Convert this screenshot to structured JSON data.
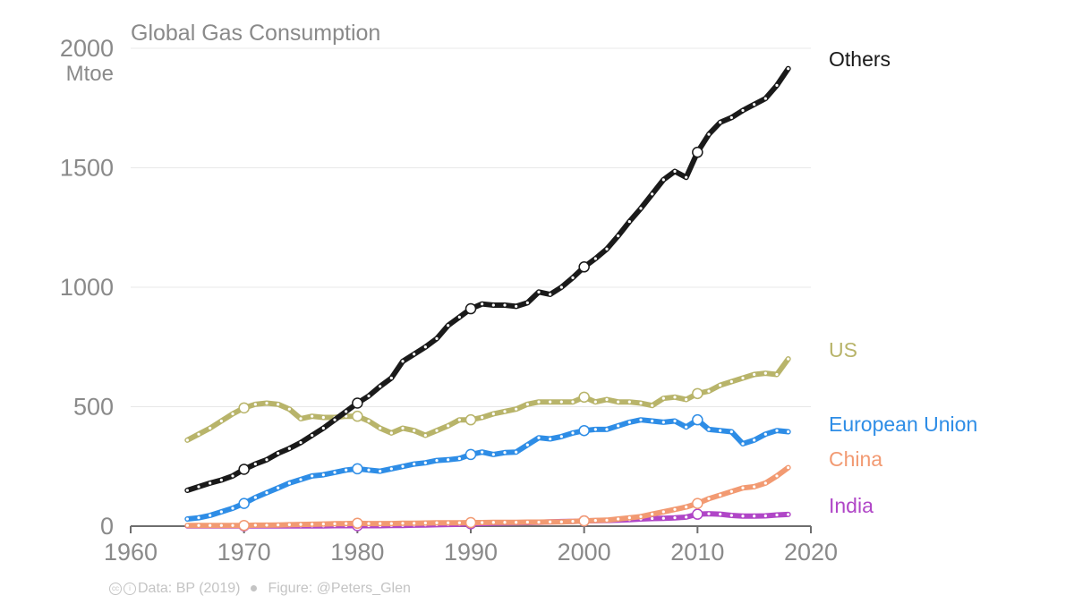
{
  "chart_data": {
    "type": "line",
    "title": "Global Gas Consumption",
    "ylabel": "",
    "unit_label": "Mtoe",
    "xlim": [
      1960,
      2020
    ],
    "ylim": [
      0,
      2000
    ],
    "x_ticks": [
      1960,
      1970,
      1980,
      1990,
      2000,
      2010,
      2020
    ],
    "y_ticks": [
      0,
      500,
      1000,
      1500,
      2000
    ],
    "x": [
      1965,
      1966,
      1967,
      1968,
      1969,
      1970,
      1971,
      1972,
      1973,
      1974,
      1975,
      1976,
      1977,
      1978,
      1979,
      1980,
      1981,
      1982,
      1983,
      1984,
      1985,
      1986,
      1987,
      1988,
      1989,
      1990,
      1991,
      1992,
      1993,
      1994,
      1995,
      1996,
      1997,
      1998,
      1999,
      2000,
      2001,
      2002,
      2003,
      2004,
      2005,
      2006,
      2007,
      2008,
      2009,
      2010,
      2011,
      2012,
      2013,
      2014,
      2015,
      2016,
      2017,
      2018
    ],
    "series": [
      {
        "name": "Others",
        "color": "#1a1a1a",
        "values": [
          150,
          165,
          180,
          193,
          210,
          238,
          260,
          278,
          305,
          325,
          350,
          380,
          410,
          445,
          480,
          515,
          545,
          585,
          620,
          690,
          720,
          750,
          785,
          840,
          875,
          910,
          930,
          925,
          925,
          920,
          935,
          980,
          970,
          1000,
          1040,
          1085,
          1120,
          1160,
          1215,
          1275,
          1330,
          1390,
          1450,
          1485,
          1460,
          1565,
          1640,
          1690,
          1710,
          1740,
          1765,
          1790,
          1845,
          1915
        ]
      },
      {
        "name": "US",
        "color": "#b8b46a",
        "values": [
          360,
          385,
          410,
          440,
          470,
          495,
          510,
          515,
          510,
          490,
          450,
          460,
          455,
          455,
          460,
          460,
          440,
          410,
          390,
          410,
          400,
          380,
          400,
          420,
          445,
          445,
          455,
          470,
          480,
          490,
          510,
          520,
          520,
          520,
          520,
          540,
          520,
          530,
          520,
          520,
          515,
          505,
          535,
          540,
          530,
          555,
          565,
          590,
          605,
          620,
          635,
          640,
          635,
          700
        ]
      },
      {
        "name": "European Union",
        "color": "#2e8de6",
        "values": [
          30,
          35,
          45,
          60,
          75,
          95,
          120,
          140,
          160,
          180,
          195,
          210,
          215,
          225,
          235,
          240,
          235,
          230,
          240,
          250,
          260,
          265,
          275,
          278,
          283,
          300,
          310,
          300,
          308,
          310,
          340,
          370,
          365,
          375,
          390,
          400,
          405,
          405,
          420,
          435,
          445,
          440,
          435,
          440,
          415,
          445,
          405,
          400,
          395,
          345,
          360,
          385,
          400,
          395
        ]
      },
      {
        "name": "China",
        "color": "#f29a72",
        "values": [
          3,
          3,
          3,
          3,
          3,
          3,
          4,
          4,
          5,
          6,
          7,
          8,
          9,
          10,
          11,
          12,
          11,
          11,
          11,
          12,
          12,
          13,
          14,
          14,
          14,
          15,
          15,
          16,
          16,
          16,
          17,
          17,
          18,
          18,
          20,
          22,
          24,
          25,
          30,
          35,
          40,
          50,
          60,
          70,
          80,
          95,
          115,
          130,
          145,
          160,
          165,
          180,
          210,
          245
        ]
      },
      {
        "name": "India",
        "color": "#b046c7",
        "values": [
          1,
          1,
          1,
          1,
          1,
          1,
          1,
          1,
          1,
          1,
          1,
          1,
          1,
          2,
          2,
          2,
          2,
          2,
          3,
          3,
          4,
          5,
          6,
          7,
          8,
          10,
          11,
          12,
          13,
          14,
          15,
          16,
          18,
          19,
          20,
          22,
          23,
          24,
          25,
          27,
          30,
          32,
          33,
          35,
          38,
          50,
          52,
          50,
          45,
          42,
          42,
          43,
          47,
          49
        ]
      }
    ],
    "labeled_points": [
      1970,
      1980,
      1990,
      2000,
      2010
    ],
    "grid": true,
    "legend": "line-end labels at right"
  },
  "footer": {
    "data_credit": "Data: BP (2019)",
    "figure_credit": "Figure: @Peters_Glen"
  }
}
